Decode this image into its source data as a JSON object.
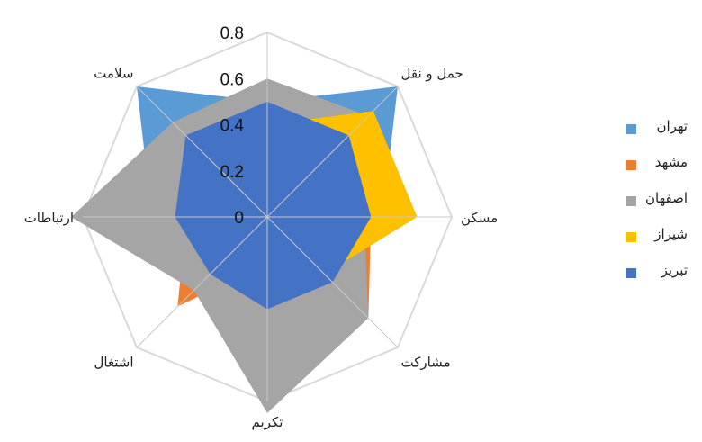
{
  "chart_data": {
    "type": "radar",
    "title": "",
    "axes": [
      "",
      "حمل و نقل",
      "مسکن",
      "مشارکت",
      "تکریم",
      "اشتغال",
      "ارتباطات",
      "سلامت"
    ],
    "ticks": [
      "0",
      "0.2",
      "0.4",
      "0.6",
      "0.8"
    ],
    "rlim": [
      0,
      0.8
    ],
    "series": [
      {
        "name": "تهران",
        "color": "#5B9BD5",
        "values": [
          0.5,
          0.8,
          0.5,
          0.4,
          0.2,
          0.35,
          0.5,
          0.8
        ]
      },
      {
        "name": "مشهد",
        "color": "#ED7D31",
        "values": [
          0.4,
          0.4,
          0.45,
          0.62,
          0.2,
          0.55,
          0.35,
          0.2
        ]
      },
      {
        "name": "اصفهان",
        "color": "#A5A5A5",
        "values": [
          0.6,
          0.62,
          0.42,
          0.62,
          0.85,
          0.45,
          0.85,
          0.58
        ]
      },
      {
        "name": "شیراز",
        "color": "#FFC000",
        "values": [
          0.4,
          0.65,
          0.65,
          0.35,
          0.2,
          0.3,
          0.35,
          0.35
        ]
      },
      {
        "name": "تبریز",
        "color": "#4472C4",
        "values": [
          0.5,
          0.5,
          0.45,
          0.4,
          0.4,
          0.35,
          0.4,
          0.5
        ]
      }
    ],
    "grid": true,
    "legend_position": "right"
  }
}
